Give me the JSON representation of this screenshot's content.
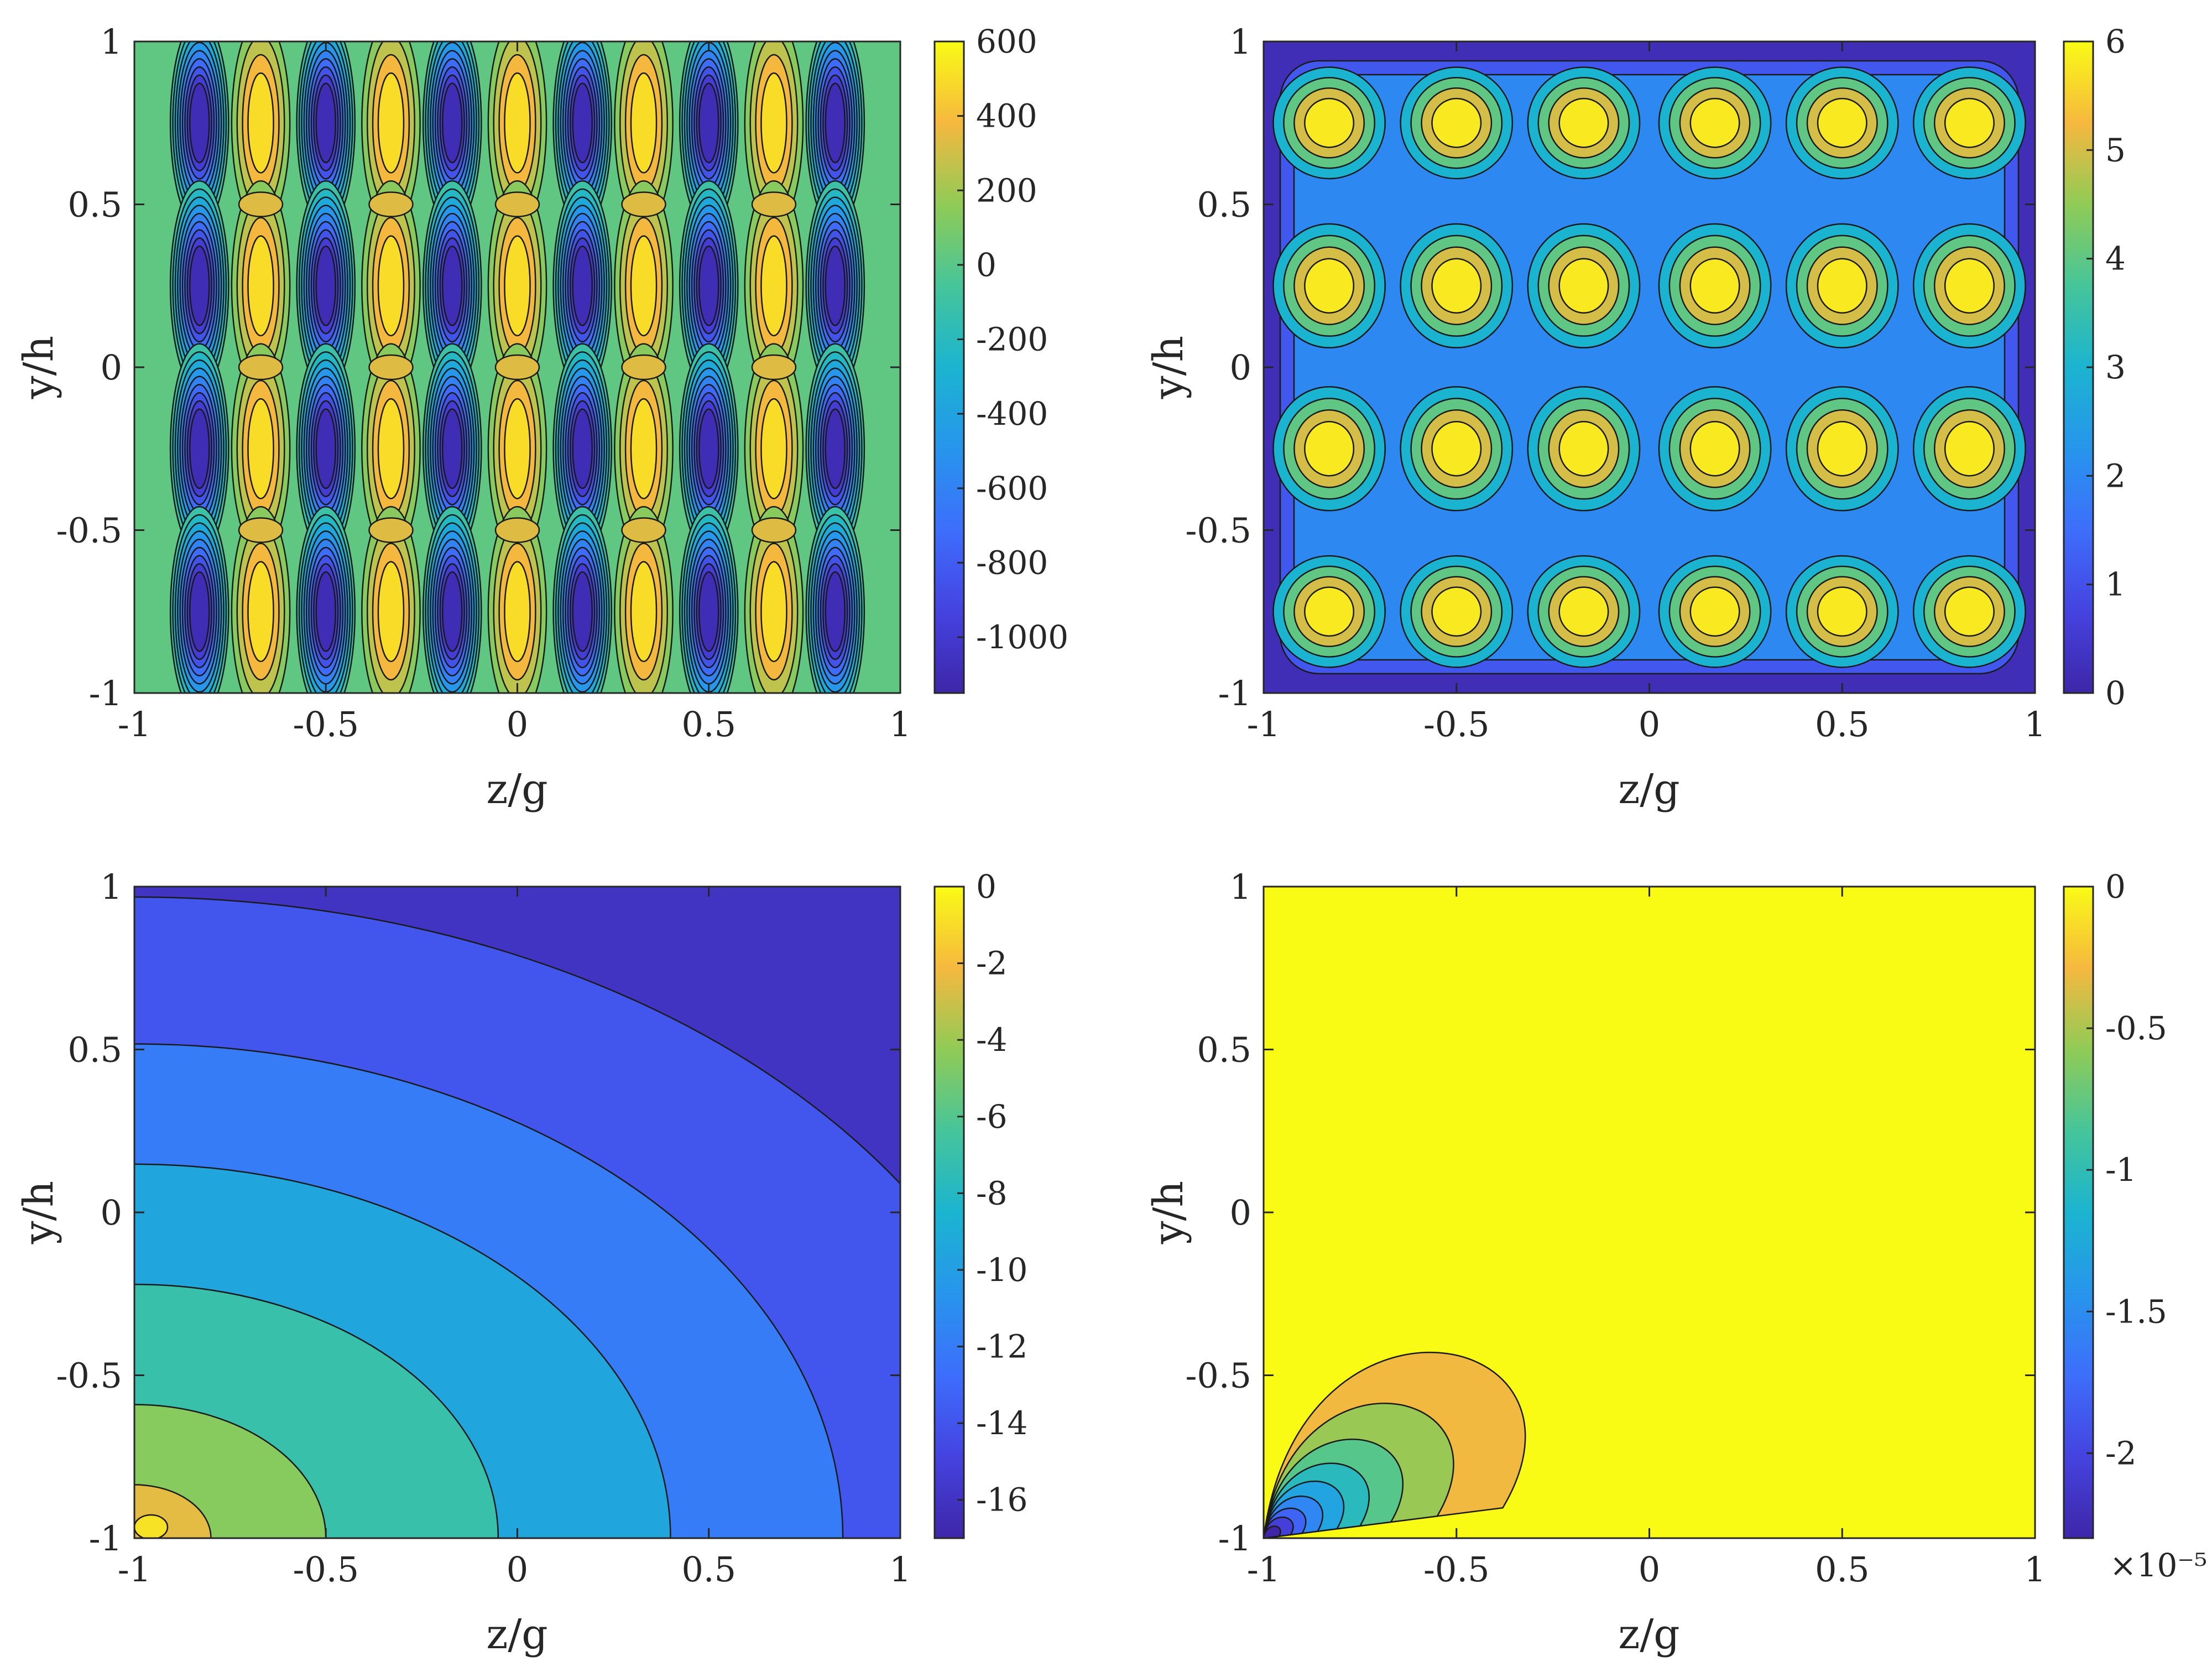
{
  "chart_data": [
    {
      "type": "contour",
      "panel": "top-left",
      "title": "",
      "xlabel": "z/g",
      "ylabel": "y/h",
      "xlim": [
        -1,
        1
      ],
      "ylim": [
        -1,
        1
      ],
      "xticks": [
        "-1",
        "-0.5",
        "0",
        "0.5",
        "1"
      ],
      "yticks": [
        "-1",
        "-0.5",
        "0",
        "0.5",
        "1"
      ],
      "colorbar": {
        "min": -1150,
        "max": 600,
        "ticks": [
          "600",
          "400",
          "200",
          "0",
          "-200",
          "-400",
          "-600",
          "-800",
          "-1000"
        ],
        "tick_values": [
          600,
          400,
          200,
          0,
          -200,
          -400,
          -600,
          -800,
          -1000
        ],
        "exponent": ""
      },
      "pattern": {
        "kind": "cell_array",
        "columns_z": [
          -0.83,
          -0.67,
          -0.5,
          -0.33,
          -0.17,
          0.0,
          0.17,
          0.33,
          0.5,
          0.67,
          0.83
        ],
        "rows_y": [
          0.75,
          0.25,
          -0.25,
          -0.75
        ],
        "negative_cells_value": -1100,
        "positive_cells_value": 500,
        "background_value": 20
      }
    },
    {
      "type": "contour",
      "panel": "top-right",
      "title": "",
      "xlabel": "z/g",
      "ylabel": "y/h",
      "xlim": [
        -1,
        1
      ],
      "ylim": [
        -1,
        1
      ],
      "xticks": [
        "-1",
        "-0.5",
        "0",
        "0.5",
        "1"
      ],
      "yticks": [
        "-1",
        "-0.5",
        "0",
        "0.5",
        "1"
      ],
      "colorbar": {
        "min": 0,
        "max": 6,
        "ticks": [
          "6",
          "5",
          "4",
          "3",
          "2",
          "1",
          "0"
        ],
        "tick_values": [
          6,
          5,
          4,
          3,
          2,
          1,
          0
        ],
        "exponent": ""
      },
      "pattern": {
        "kind": "cell_array",
        "columns_z": [
          -0.83,
          -0.5,
          -0.17,
          0.17,
          0.5,
          0.83
        ],
        "rows_y": [
          0.75,
          0.25,
          -0.25,
          -0.75
        ],
        "peak_value": 5.9,
        "background_value": 2.0,
        "wall_value": 0.2
      }
    },
    {
      "type": "contour",
      "panel": "bottom-left",
      "title": "",
      "xlabel": "z/g",
      "ylabel": "y/h",
      "xlim": [
        -1,
        1
      ],
      "ylim": [
        -1,
        1
      ],
      "xticks": [
        "-1",
        "-0.5",
        "0",
        "0.5",
        "1"
      ],
      "yticks": [
        "-1",
        "-0.5",
        "0",
        "0.5",
        "1"
      ],
      "colorbar": {
        "min": -17,
        "max": 0,
        "ticks": [
          "0",
          "-2",
          "-4",
          "-6",
          "-8",
          "-10",
          "-12",
          "-14",
          "-16"
        ],
        "tick_values": [
          0,
          -2,
          -4,
          -6,
          -8,
          -10,
          -12,
          -14,
          -16
        ],
        "exponent": ""
      },
      "pattern": {
        "kind": "corner_decay",
        "corner": [
          -1,
          -1
        ],
        "level_values": [
          -2.5,
          -4.5,
          -7.0,
          -9.5,
          -12.0,
          -14.0,
          -16.0
        ],
        "level_radii": [
          0.2,
          0.5,
          0.95,
          1.4,
          1.85,
          2.4
        ]
      }
    },
    {
      "type": "contour",
      "panel": "bottom-right",
      "title": "",
      "xlabel": "z/g",
      "ylabel": "y/h",
      "xlim": [
        -1,
        1
      ],
      "ylim": [
        -1,
        1
      ],
      "xticks": [
        "-1",
        "-0.5",
        "0",
        "0.5",
        "1"
      ],
      "yticks": [
        "-1",
        "-0.5",
        "0",
        "0.5",
        "1"
      ],
      "colorbar": {
        "min": -2.3,
        "max": 0,
        "ticks": [
          "0",
          "-0.5",
          "-1",
          "-1.5",
          "-2"
        ],
        "tick_values": [
          0,
          -0.5,
          -1,
          -1.5,
          -2
        ],
        "exponent": "×10⁻⁵"
      },
      "pattern": {
        "kind": "corner_lobes",
        "corner": [
          -1,
          -1
        ],
        "level_values": [
          -0.3,
          -0.55,
          -0.8,
          -1.05,
          -1.3,
          -1.55,
          -1.8,
          -2.05,
          -2.3
        ],
        "lobe_extent_z": [
          0.62,
          0.45,
          0.33,
          0.25,
          0.19,
          0.14,
          0.1,
          0.07,
          0.04
        ],
        "lobe_extent_y": [
          0.62,
          0.45,
          0.33,
          0.25,
          0.19,
          0.14,
          0.1,
          0.07,
          0.04
        ],
        "background_value": 0
      }
    }
  ]
}
